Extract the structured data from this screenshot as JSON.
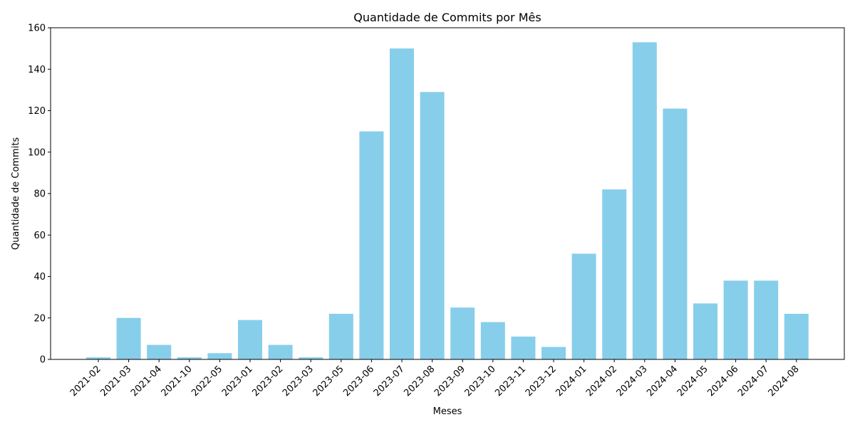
{
  "chart_data": {
    "type": "bar",
    "title": "Quantidade de Commits por Mês",
    "xlabel": "Meses",
    "ylabel": "Quantidade de Commits",
    "categories": [
      "2021-02",
      "2021-03",
      "2021-04",
      "2021-10",
      "2022-05",
      "2023-01",
      "2023-02",
      "2023-03",
      "2023-05",
      "2023-06",
      "2023-07",
      "2023-08",
      "2023-09",
      "2023-10",
      "2023-11",
      "2023-12",
      "2024-01",
      "2024-02",
      "2024-03",
      "2024-04",
      "2024-05",
      "2024-06",
      "2024-07",
      "2024-08"
    ],
    "values": [
      1,
      20,
      7,
      1,
      3,
      19,
      7,
      1,
      22,
      110,
      150,
      129,
      25,
      18,
      11,
      6,
      51,
      82,
      153,
      121,
      27,
      38,
      38,
      22
    ],
    "ylim": [
      0,
      160
    ],
    "yticks": [
      0,
      20,
      40,
      60,
      80,
      100,
      120,
      140,
      160
    ],
    "grid": false,
    "bar_color": "#87ceeb",
    "x_tick_rotation_deg": 45
  }
}
